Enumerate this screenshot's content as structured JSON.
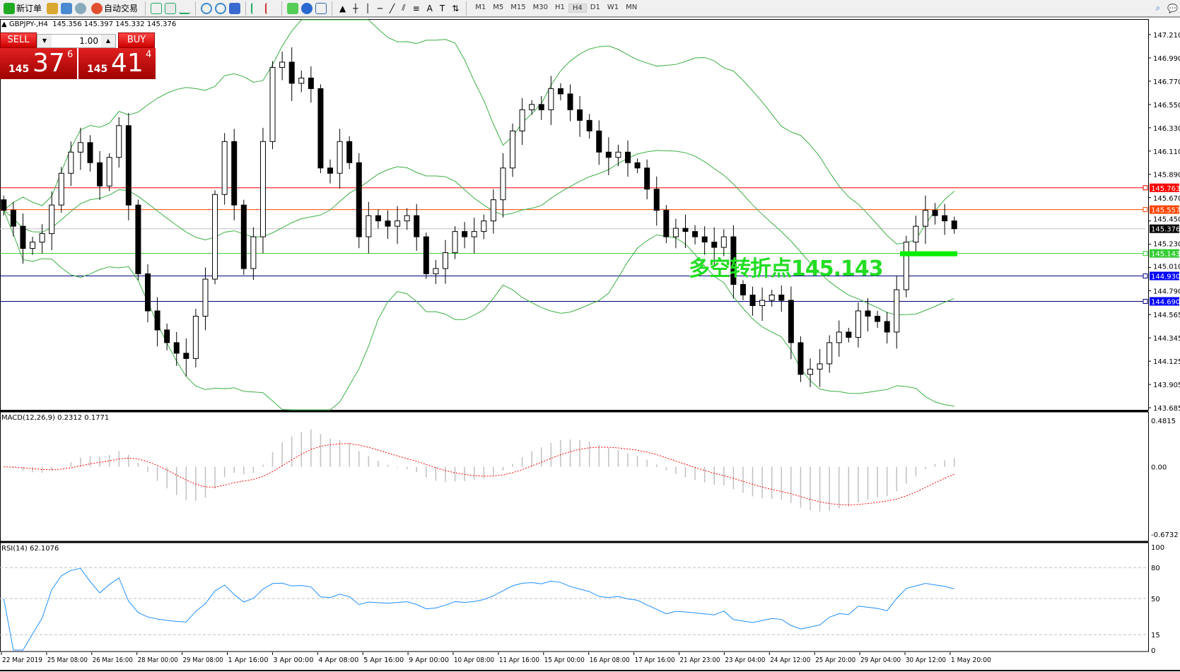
{
  "toolbar": {
    "new_order": "新订单",
    "auto_trading": "自动交易",
    "timeframes": [
      "M1",
      "M5",
      "M15",
      "M30",
      "H1",
      "H4",
      "D1",
      "W1",
      "MN"
    ],
    "active_timeframe": "H4",
    "icons": [
      "new-order-icon",
      "history-icon",
      "navigator-icon",
      "signals-icon",
      "auto-trading-icon",
      "bar-chart-icon",
      "candlestick-icon",
      "line-chart-icon",
      "zoom-in-icon",
      "zoom-out-icon",
      "tile-windows-icon",
      "autoscroll-icon",
      "chart-shift-icon",
      "indicators-icon",
      "periods-icon",
      "templates-icon",
      "cursor-icon",
      "crosshair-icon",
      "vertical-line-icon",
      "horizontal-line-icon",
      "trendline-icon",
      "fibonacci-fan-icon",
      "fibonacci-retracement-icon",
      "text-icon",
      "text-label-icon",
      "arrows-icon",
      "search-icon",
      "chat-icon"
    ]
  },
  "header": {
    "symbol": "GBPJPY-,H4",
    "ohlc": "145.356 145.397 145.332 145.376"
  },
  "trade_panel": {
    "sell_label": "SELL",
    "buy_label": "BUY",
    "lot": "1.00",
    "sell_price": {
      "big": "145",
      "main": "37",
      "pip": "6"
    },
    "buy_price": {
      "big": "145",
      "main": "41",
      "pip": "4"
    },
    "color": "#d01010"
  },
  "annotation": {
    "text": "多空转折点145.143",
    "color": "#22dd22"
  },
  "price_axis": [
    "147.210",
    "146.990",
    "146.770",
    "146.550",
    "146.330",
    "146.110",
    "145.890",
    "145.670",
    "145.450",
    "145.230",
    "145.010",
    "144.790",
    "144.565",
    "144.345",
    "144.125",
    "143.905",
    "143.685"
  ],
  "levels": [
    {
      "price": "145.763",
      "color": "#ff0000"
    },
    {
      "price": "145.557",
      "color": "#ff4500"
    },
    {
      "price": "145.376",
      "color": "#000000",
      "line": "#c0c0c0"
    },
    {
      "price": "145.143",
      "color": "#32cd32"
    },
    {
      "price": "144.930",
      "color": "#0000ff",
      "line": "#000080"
    },
    {
      "price": "144.690",
      "color": "#0000ff",
      "line": "#000080"
    }
  ],
  "macd": {
    "label": "MACD(12,26,9) 0.2312 0.1771",
    "axis": [
      "0.4815",
      "0.00",
      "-0.6732"
    ]
  },
  "rsi": {
    "label": "RSI(14) 62.1076",
    "axis": [
      "100",
      "80",
      "50",
      "15",
      "0"
    ]
  },
  "time_axis": [
    "22 Mar 2019",
    "25 Mar 08:00",
    "26 Mar 16:00",
    "28 Mar 00:00",
    "29 Mar 08:00",
    "1 Apr 16:00",
    "3 Apr 00:00",
    "4 Apr 08:00",
    "5 Apr 16:00",
    "9 Apr 00:00",
    "10 Apr 08:00",
    "11 Apr 16:00",
    "15 Apr 00:00",
    "16 Apr 08:00",
    "17 Apr 16:00",
    "21 Apr 23:00",
    "23 Apr 04:00",
    "24 Apr 12:00",
    "25 Apr 20:00",
    "29 Apr 04:00",
    "30 Apr 12:00",
    "1 May 20:00"
  ],
  "chart_data": {
    "type": "candlestick",
    "symbol": "GBPJPY-",
    "timeframe": "H4",
    "ylim": [
      143.685,
      147.21
    ],
    "closes": [
      145.55,
      145.4,
      145.19,
      145.25,
      145.33,
      145.6,
      145.9,
      146.1,
      146.19,
      146.0,
      145.78,
      146.05,
      146.35,
      145.6,
      144.95,
      144.6,
      144.42,
      144.3,
      144.2,
      144.15,
      144.55,
      144.9,
      145.7,
      146.2,
      145.6,
      145.0,
      145.3,
      146.2,
      146.9,
      146.95,
      146.75,
      146.8,
      146.7,
      145.95,
      145.9,
      146.2,
      146.0,
      145.3,
      145.5,
      145.45,
      145.4,
      145.45,
      145.5,
      145.3,
      144.95,
      145.0,
      145.15,
      145.35,
      145.3,
      145.35,
      145.45,
      145.65,
      145.95,
      146.3,
      146.5,
      146.55,
      146.5,
      146.7,
      146.65,
      146.5,
      146.4,
      146.3,
      146.1,
      146.05,
      146.1,
      146.0,
      145.95,
      145.75,
      145.55,
      145.3,
      145.38,
      145.35,
      145.3,
      145.25,
      145.2,
      145.3,
      144.85,
      144.75,
      144.65,
      144.7,
      144.75,
      144.7,
      144.3,
      144.0,
      144.05,
      144.1,
      144.3,
      144.4,
      144.35,
      144.6,
      144.55,
      144.5,
      144.4,
      144.8,
      145.25,
      145.4,
      145.55,
      145.5,
      145.45,
      145.376
    ],
    "bollinger_color": "#3cb043",
    "macd_hist_color": "#c0c0c0",
    "macd_signal_color": "#ff0000",
    "rsi_color": "#1e90ff",
    "rsi_levels": [
      80,
      50,
      15
    ]
  }
}
